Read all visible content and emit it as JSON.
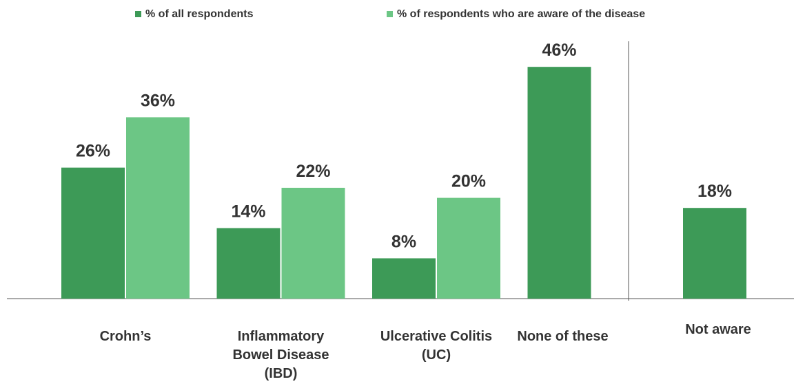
{
  "chart_data": {
    "type": "bar",
    "categories": [
      "Crohn’s",
      "Inflammatory Bowel Disease (IBD)",
      "Ulcerative Colitis (UC)",
      "None of these",
      "Not aware"
    ],
    "series": [
      {
        "name": "% of all respondents",
        "color": "#3d9a57",
        "values": [
          26,
          14,
          8,
          46,
          18
        ],
        "value_labels": [
          "26%",
          "14%",
          "8%",
          "46%",
          "18%"
        ]
      },
      {
        "name": "% of respondents who are aware of the disease",
        "color": "#6cc685",
        "values": [
          36,
          22,
          20,
          null,
          null
        ],
        "value_labels": [
          "36%",
          "22%",
          "20%",
          null,
          null
        ]
      }
    ],
    "ylim": [
      0,
      59
    ],
    "legend": "top"
  }
}
